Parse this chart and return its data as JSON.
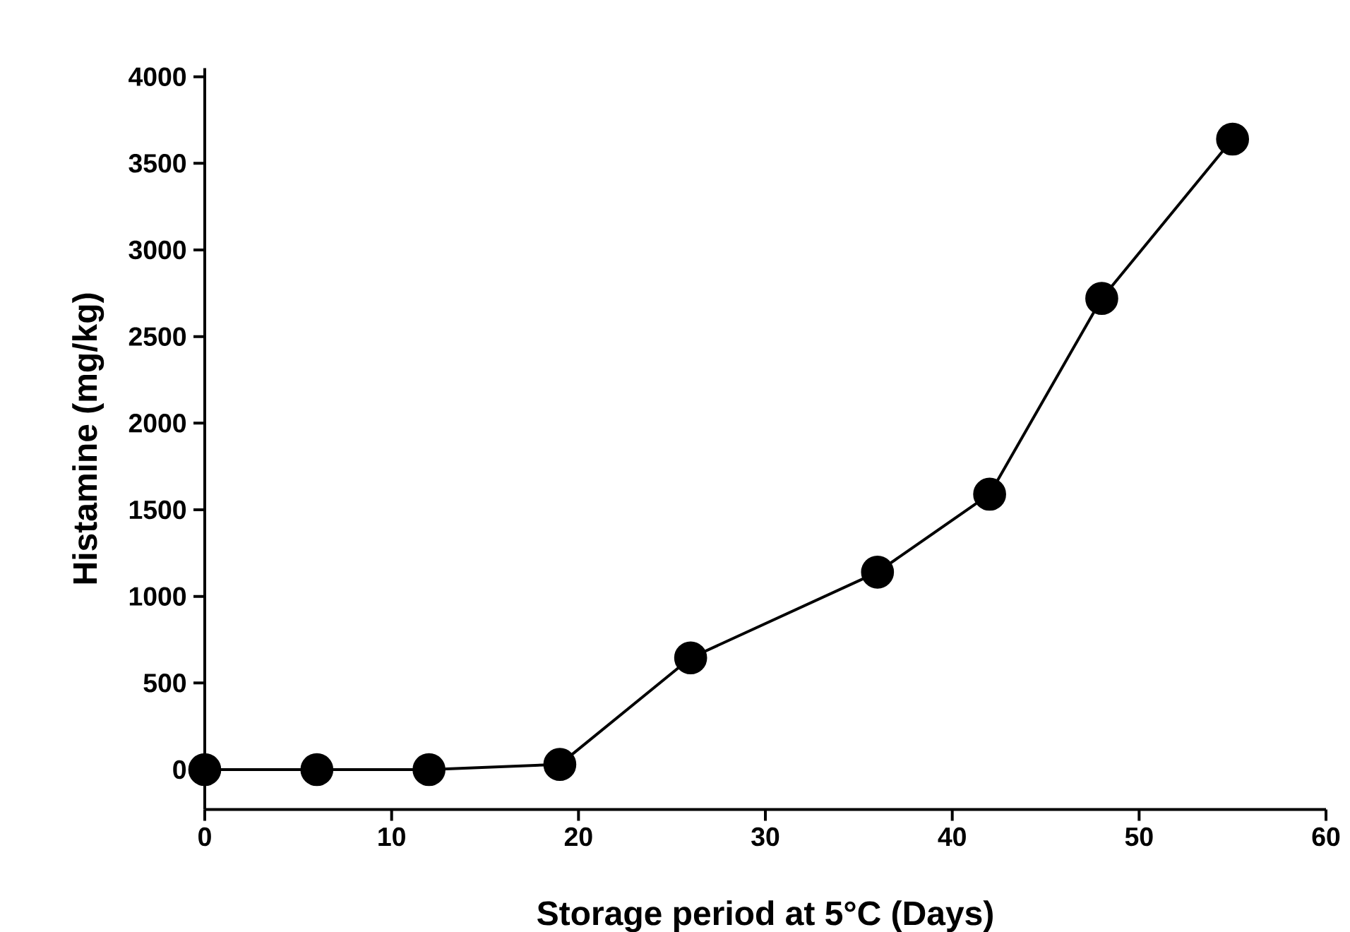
{
  "chart_data": {
    "type": "line",
    "xlabel": "Storage period at 5°C (Days)",
    "ylabel": "Histamine (mg/kg)",
    "x": [
      0,
      6,
      12,
      19,
      26,
      36,
      42,
      48,
      55
    ],
    "series": [
      {
        "color": "#000000",
        "values": [
          0,
          0,
          0,
          30,
          645,
          1140,
          1590,
          2720,
          3640
        ]
      }
    ],
    "xlim": [
      0,
      60
    ],
    "ylim": [
      -230,
      4050
    ],
    "xticks": [
      0,
      10,
      20,
      30,
      40,
      50,
      60
    ],
    "yticks": [
      0,
      500,
      1000,
      1500,
      2000,
      2500,
      3000,
      3500,
      4000
    ],
    "marker": "circle",
    "line_style": "solid",
    "grid": false
  }
}
